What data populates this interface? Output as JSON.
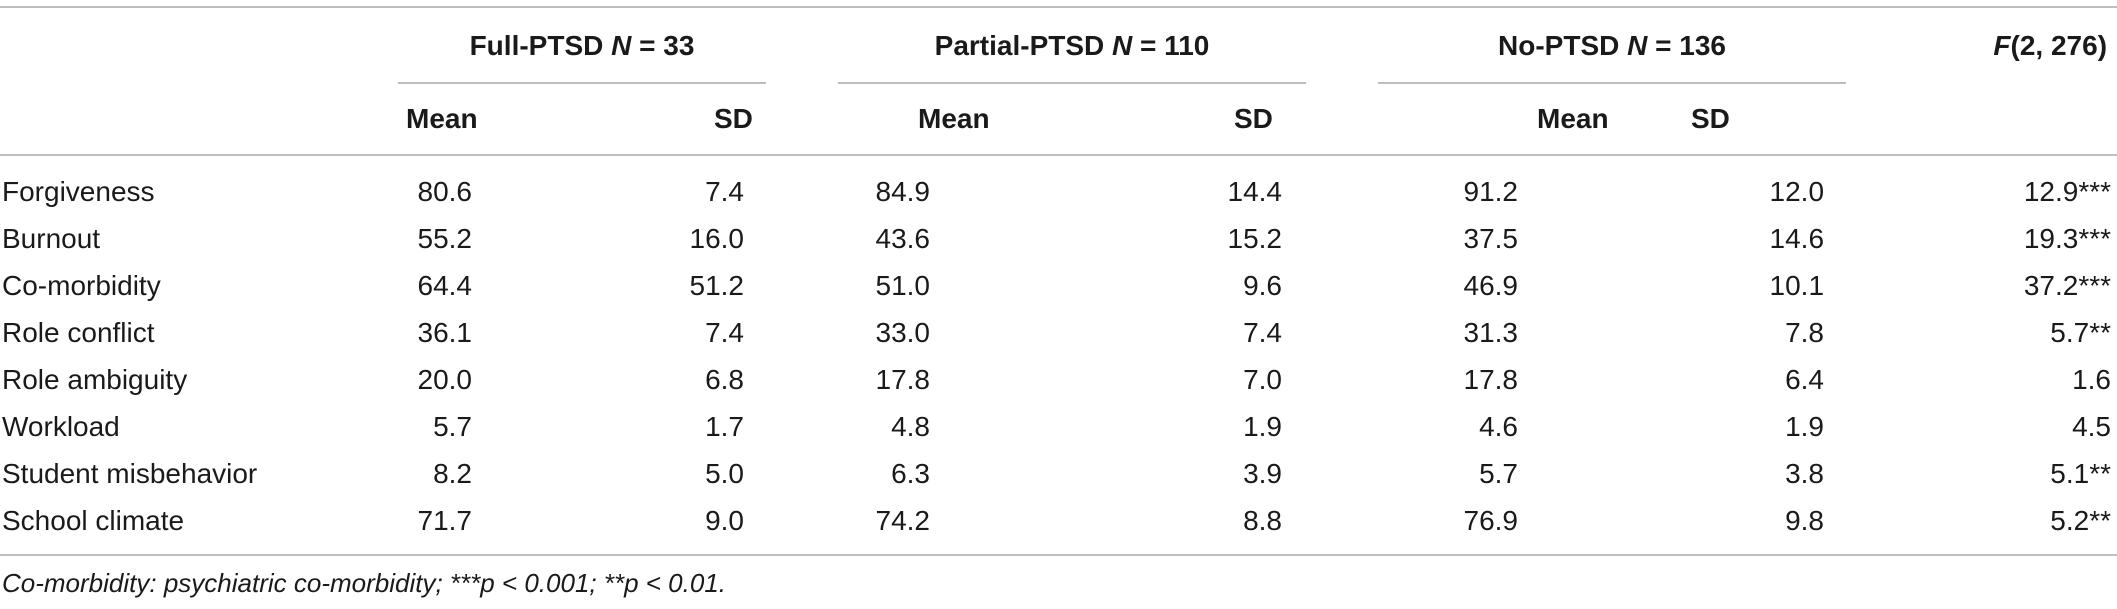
{
  "header": {
    "groups": [
      {
        "name": "Full-PTSD",
        "n_label": "N",
        "n_value": "= 33"
      },
      {
        "name": "Partial-PTSD",
        "n_label": "N",
        "n_value": "= 110"
      },
      {
        "name": "No-PTSD",
        "n_label": "N",
        "n_value": "= 136"
      }
    ],
    "f_label_italic": "F",
    "f_label_rest": "(2, 276)",
    "mean_label": "Mean",
    "sd_label": "SD"
  },
  "rows": [
    {
      "label": "Forgiveness",
      "full_mean": "80.6",
      "full_sd": "7.4",
      "partial_mean": "84.9",
      "partial_sd": "14.4",
      "no_mean": "91.2",
      "no_sd": "12.0",
      "f": "12.9***"
    },
    {
      "label": "Burnout",
      "full_mean": "55.2",
      "full_sd": "16.0",
      "partial_mean": "43.6",
      "partial_sd": "15.2",
      "no_mean": "37.5",
      "no_sd": "14.6",
      "f": "19.3***"
    },
    {
      "label": "Co-morbidity",
      "full_mean": "64.4",
      "full_sd": "51.2",
      "partial_mean": "51.0",
      "partial_sd": "9.6",
      "no_mean": "46.9",
      "no_sd": "10.1",
      "f": "37.2***"
    },
    {
      "label": "Role conflict",
      "full_mean": "36.1",
      "full_sd": "7.4",
      "partial_mean": "33.0",
      "partial_sd": "7.4",
      "no_mean": "31.3",
      "no_sd": "7.8",
      "f": "5.7**"
    },
    {
      "label": "Role ambiguity",
      "full_mean": "20.0",
      "full_sd": "6.8",
      "partial_mean": "17.8",
      "partial_sd": "7.0",
      "no_mean": "17.8",
      "no_sd": "6.4",
      "f": "1.6"
    },
    {
      "label": "Workload",
      "full_mean": "5.7",
      "full_sd": "1.7",
      "partial_mean": "4.8",
      "partial_sd": "1.9",
      "no_mean": "4.6",
      "no_sd": "1.9",
      "f": "4.5"
    },
    {
      "label": "Student misbehavior",
      "full_mean": "8.2",
      "full_sd": "5.0",
      "partial_mean": "6.3",
      "partial_sd": "3.9",
      "no_mean": "5.7",
      "no_sd": "3.8",
      "f": "5.1**"
    },
    {
      "label": "School climate",
      "full_mean": "71.7",
      "full_sd": "9.0",
      "partial_mean": "74.2",
      "partial_sd": "8.8",
      "no_mean": "76.9",
      "no_sd": "9.8",
      "f": "5.2**"
    }
  ],
  "note": "Co-morbidity: psychiatric co-morbidity; ***p < 0.001; **p < 0.01."
}
